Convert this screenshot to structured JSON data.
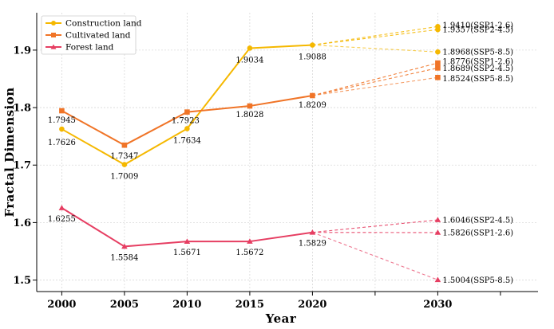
{
  "chart_data": {
    "type": "line",
    "xlabel": "Year",
    "ylabel": "Fractal Dimension",
    "xlim": [
      1998,
      2038
    ],
    "ylim": [
      1.48,
      1.965
    ],
    "x_ticks": [
      2000,
      2005,
      2010,
      2015,
      2020,
      2030
    ],
    "y_ticks": [
      1.5,
      1.6,
      1.7,
      1.8,
      1.9
    ],
    "grid": true,
    "legend_position": "top-left",
    "series": [
      {
        "name": "Construction land",
        "color": "#F5B800",
        "marker": "circle",
        "x": [
          2000,
          2005,
          2010,
          2015,
          2020
        ],
        "values": [
          1.7626,
          1.7009,
          1.7634,
          1.9034,
          1.9088
        ],
        "labels": [
          "1.7626",
          "1.7009",
          "1.7634",
          "1.9034",
          "1.9088"
        ],
        "scenarios": [
          {
            "value": 1.941,
            "label": "1.9410(SSP1-2.6)"
          },
          {
            "value": 1.9357,
            "label": "1.9357(SSP2-4.5)"
          },
          {
            "value": 1.8968,
            "label": "1.8968(SSP5-8.5)"
          }
        ]
      },
      {
        "name": "Cultivated land",
        "color": "#F07427",
        "marker": "square",
        "x": [
          2000,
          2005,
          2010,
          2015,
          2020
        ],
        "values": [
          1.7945,
          1.7347,
          1.7923,
          1.8028,
          1.8209
        ],
        "labels": [
          "1.7945",
          "1.7347",
          "1.7923",
          "1.8028",
          "1.8209"
        ],
        "scenarios": [
          {
            "value": 1.8776,
            "label": "1.8776(SSP1-2.6)"
          },
          {
            "value": 1.8689,
            "label": "1.8689(SSP2-4.5)"
          },
          {
            "value": 1.8524,
            "label": "1.8524(SSP5-8.5)"
          }
        ]
      },
      {
        "name": "Forest land",
        "color": "#E63E62",
        "marker": "triangle",
        "x": [
          2000,
          2005,
          2010,
          2015,
          2020
        ],
        "values": [
          1.6255,
          1.5584,
          1.5671,
          1.5672,
          1.5829
        ],
        "labels": [
          "1.6255",
          "1.5584",
          "1.5671",
          "1.5672",
          "1.5829"
        ],
        "scenarios": [
          {
            "value": 1.6046,
            "label": "1.6046(SSP2-4.5)"
          },
          {
            "value": 1.5826,
            "label": "1.5826(SSP1-2.6)"
          },
          {
            "value": 1.5004,
            "label": "1.5004(SSP5-8.5)"
          }
        ]
      }
    ],
    "scenario_x": 2030
  }
}
